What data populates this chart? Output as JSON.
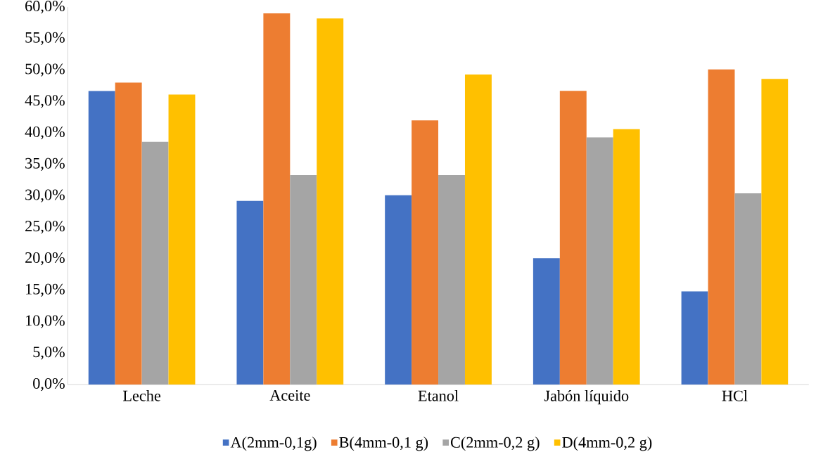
{
  "chart_data": {
    "type": "bar",
    "categories": [
      "Leche",
      "Aceite",
      "Etanol",
      "Jabón líquido",
      "HCl"
    ],
    "series": [
      {
        "name": "A(2mm-0,1g)",
        "color": "#4472c4",
        "values": [
          46.7,
          29.2,
          30.1,
          20.1,
          14.8
        ]
      },
      {
        "name": "B(4mm-0,1 g)",
        "color": "#ed7d31",
        "values": [
          48.0,
          59.0,
          42.0,
          46.7,
          50.1
        ]
      },
      {
        "name": "C(2mm-0,2 g)",
        "color": "#a5a5a5",
        "values": [
          38.6,
          33.3,
          33.3,
          39.3,
          30.4
        ]
      },
      {
        "name": "D(4mm-0,2 g)",
        "color": "#ffc000",
        "values": [
          46.1,
          58.2,
          49.3,
          40.6,
          48.6
        ]
      }
    ],
    "ylim": [
      0,
      60
    ],
    "yticks": [
      {
        "value": 0,
        "label": "0,0%"
      },
      {
        "value": 5,
        "label": "5,0%"
      },
      {
        "value": 10,
        "label": "10,0%"
      },
      {
        "value": 15,
        "label": "15,0%"
      },
      {
        "value": 20,
        "label": "20,0%"
      },
      {
        "value": 25,
        "label": "25,0%"
      },
      {
        "value": 30,
        "label": "30,0%"
      },
      {
        "value": 35,
        "label": "35,0%"
      },
      {
        "value": 40,
        "label": "40,0%"
      },
      {
        "value": 45,
        "label": "45,0%"
      },
      {
        "value": 50,
        "label": "50,0%"
      },
      {
        "value": 55,
        "label": "55,0%"
      },
      {
        "value": 60,
        "label": "60,0%"
      }
    ],
    "grid": false,
    "legend": "bottom"
  }
}
